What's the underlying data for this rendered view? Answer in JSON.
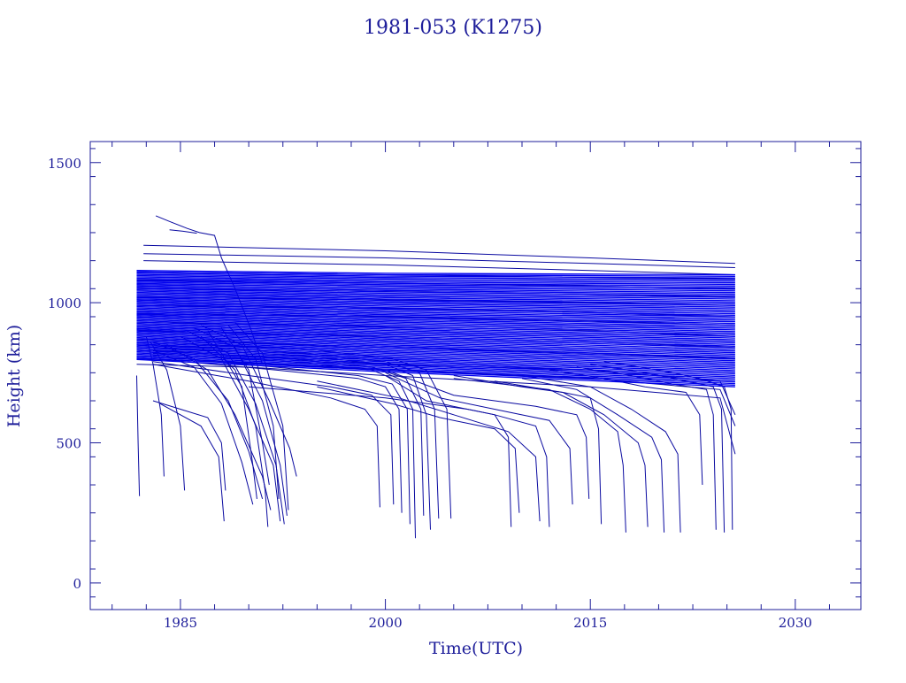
{
  "chart_data": {
    "type": "line",
    "title": "1981-053 (K1275)",
    "xlabel": "Time(UTC)",
    "ylabel": "Height (km)",
    "xlim": [
      1978.4,
      2034.8
    ],
    "ylim": [
      -95,
      1575
    ],
    "xticks": [
      1985,
      2000,
      2015,
      2030
    ],
    "xtick_labels": [
      "1985",
      "2000",
      "2015",
      "2030"
    ],
    "yticks": [
      0,
      500,
      1000,
      1500
    ],
    "ytick_labels": [
      "0",
      "500",
      "1000",
      "1500"
    ],
    "grid": false,
    "legend": "none",
    "colors": {
      "axes": "#1d1d9a",
      "text": "#1d1d9a",
      "series": "#0a0aa0",
      "dense_band": "#0000ee"
    },
    "series": [
      {
        "x": [
          1983.2,
          1984.2,
          1985.5,
          1986.4,
          1987.5,
          1988.0,
          1989.0,
          1990.2,
          1991.0
        ],
        "y": [
          1310,
          1290,
          1265,
          1250,
          1240,
          1160,
          1050,
          900,
          780
        ]
      },
      {
        "x": [
          1984.2,
          1985.2,
          1986.2
        ],
        "y": [
          1260,
          1255,
          1248
        ]
      },
      {
        "x": [
          1982.3,
          2000,
          2015,
          2025.6
        ],
        "y": [
          1205,
          1185,
          1160,
          1140
        ]
      },
      {
        "x": [
          1982.3,
          2000,
          2015,
          2025.6
        ],
        "y": [
          1175,
          1160,
          1140,
          1125
        ]
      },
      {
        "x": [
          1982.3,
          2000,
          2015,
          2025.6
        ],
        "y": [
          1150,
          1135,
          1115,
          1100
        ]
      },
      {
        "x": [
          1981.8,
          2000,
          2015,
          2025.6
        ],
        "y": [
          1110,
          1100,
          1090,
          1085
        ]
      },
      {
        "x": [
          1981.8,
          2000,
          2015,
          2025.6
        ],
        "y": [
          1080,
          1070,
          1060,
          1050
        ]
      },
      {
        "x": [
          1981.8,
          2000,
          2015,
          2025.6
        ],
        "y": [
          1050,
          1040,
          1030,
          1020
        ]
      },
      {
        "x": [
          1981.8,
          2000,
          2015,
          2025.6
        ],
        "y": [
          1020,
          1010,
          1000,
          990
        ]
      },
      {
        "x": [
          1981.8,
          2000,
          2015,
          2025.6
        ],
        "y": [
          990,
          980,
          965,
          950
        ]
      },
      {
        "x": [
          1981.8,
          2000,
          2015,
          2025.6
        ],
        "y": [
          960,
          950,
          935,
          920
        ]
      },
      {
        "x": [
          1981.8,
          2000,
          2015,
          2025.6
        ],
        "y": [
          930,
          915,
          900,
          880
        ]
      },
      {
        "x": [
          1981.8,
          2000,
          2015,
          2025.6
        ],
        "y": [
          900,
          880,
          860,
          840
        ]
      },
      {
        "x": [
          1981.8,
          2000,
          2015,
          2025.6
        ],
        "y": [
          870,
          840,
          820,
          800
        ]
      },
      {
        "x": [
          1981.8,
          1990,
          2000,
          2015,
          2024.5,
          2025.6
        ],
        "y": [
          830,
          810,
          780,
          760,
          720,
          600
        ]
      },
      {
        "x": [
          1981.8,
          1990,
          2000,
          2015,
          2024.5,
          2025.6
        ],
        "y": [
          800,
          785,
          760,
          730,
          690,
          560
        ]
      },
      {
        "x": [
          1981.8,
          1990,
          2000,
          2015,
          2024.5,
          2025.6
        ],
        "y": [
          780,
          770,
          740,
          700,
          660,
          460
        ]
      },
      {
        "x": [
          1981.8,
          1981.9,
          1982.0
        ],
        "y": [
          740,
          500,
          310
        ]
      },
      {
        "x": [
          1982.5,
          1983.0,
          1983.6,
          1983.8
        ],
        "y": [
          880,
          780,
          600,
          380
        ]
      },
      {
        "x": [
          1982.8,
          1984.0,
          1985.0,
          1985.3
        ],
        "y": [
          860,
          760,
          560,
          330
        ]
      },
      {
        "x": [
          1983.0,
          1985.0,
          1987.0,
          1988.0,
          1988.3
        ],
        "y": [
          650,
          620,
          590,
          500,
          330
        ]
      },
      {
        "x": [
          1983.5,
          1986.5,
          1987.8,
          1988.2
        ],
        "y": [
          640,
          560,
          450,
          220
        ]
      },
      {
        "x": [
          1983.0,
          1986.0,
          1988.0,
          1989.5,
          1990.3
        ],
        "y": [
          830,
          770,
          640,
          430,
          280
        ]
      },
      {
        "x": [
          1983.0,
          1986.0,
          1988.5,
          1990.0,
          1991.0
        ],
        "y": [
          860,
          800,
          650,
          470,
          300
        ]
      },
      {
        "x": [
          1984.0,
          1987.0,
          1989.0,
          1991.0,
          1991.6
        ],
        "y": [
          850,
          760,
          600,
          380,
          260
        ]
      },
      {
        "x": [
          1985.0,
          1988.0,
          1990.0,
          1991.8,
          1992.3
        ],
        "y": [
          880,
          800,
          620,
          420,
          220
        ]
      },
      {
        "x": [
          1985.5,
          1988.5,
          1990.5,
          1992.0,
          1992.6
        ],
        "y": [
          900,
          820,
          640,
          420,
          210
        ]
      },
      {
        "x": [
          1986.0,
          1989.0,
          1991.0,
          1992.3,
          1992.8
        ],
        "y": [
          910,
          840,
          650,
          420,
          240
        ]
      },
      {
        "x": [
          1986.5,
          1989.5,
          1991.5,
          1993.0,
          1993.5
        ],
        "y": [
          920,
          850,
          650,
          480,
          380
        ]
      },
      {
        "x": [
          1986.5,
          1989.0,
          1990.5,
          1991.2,
          1991.4
        ],
        "y": [
          880,
          760,
          560,
          330,
          200
        ]
      },
      {
        "x": [
          1987.0,
          1989.5,
          1990.3,
          1990.6
        ],
        "y": [
          900,
          700,
          420,
          300
        ]
      },
      {
        "x": [
          1988.0,
          1990.0,
          1991.0,
          1991.5
        ],
        "y": [
          910,
          760,
          500,
          350
        ]
      },
      {
        "x": [
          1988.5,
          1990.5,
          1991.8,
          1992.2
        ],
        "y": [
          920,
          800,
          560,
          300
        ]
      },
      {
        "x": [
          1989.0,
          1991.0,
          1992.5,
          1992.9
        ],
        "y": [
          930,
          820,
          560,
          260
        ]
      },
      {
        "x": [
          1983.0,
          1990.0,
          1996.0,
          1998.5,
          1999.4,
          1999.6
        ],
        "y": [
          780,
          720,
          660,
          620,
          560,
          270
        ]
      },
      {
        "x": [
          1983.0,
          1990.0,
          1996.0,
          1999.0,
          2000.4,
          2000.6
        ],
        "y": [
          790,
          740,
          700,
          670,
          600,
          280
        ]
      },
      {
        "x": [
          1983.0,
          1992.0,
          1998.0,
          2000.0,
          2001.0,
          2001.2
        ],
        "y": [
          800,
          760,
          730,
          700,
          620,
          250
        ]
      },
      {
        "x": [
          1983.0,
          1992.0,
          1998.0,
          2000.5,
          2001.6,
          2001.8
        ],
        "y": [
          810,
          770,
          740,
          710,
          620,
          210
        ]
      },
      {
        "x": [
          1983.0,
          1993.0,
          1999.0,
          2001.0,
          2002.0,
          2002.2
        ],
        "y": [
          820,
          790,
          760,
          720,
          620,
          160
        ]
      },
      {
        "x": [
          1983.0,
          1993.0,
          1999.0,
          2001.5,
          2002.6,
          2002.8
        ],
        "y": [
          830,
          800,
          770,
          730,
          620,
          240
        ]
      },
      {
        "x": [
          1983.0,
          1994.0,
          2000.0,
          2002.0,
          2003.0,
          2003.3
        ],
        "y": [
          840,
          810,
          780,
          740,
          600,
          190
        ]
      },
      {
        "x": [
          1983.0,
          1994.0,
          2000.0,
          2002.5,
          2003.6,
          2003.9
        ],
        "y": [
          850,
          820,
          790,
          750,
          620,
          230
        ]
      },
      {
        "x": [
          1983.0,
          1995.0,
          2000.5,
          2003.0,
          2004.5,
          2004.8
        ],
        "y": [
          860,
          830,
          800,
          760,
          620,
          230
        ]
      },
      {
        "x": [
          1990.0,
          2000.0,
          2006.0,
          2008.0,
          2009.0,
          2009.2
        ],
        "y": [
          700,
          660,
          620,
          600,
          520,
          200
        ]
      },
      {
        "x": [
          1995.0,
          2000.5,
          2004.0,
          2008.0,
          2009.5,
          2009.8
        ],
        "y": [
          700,
          640,
          590,
          550,
          480,
          250
        ]
      },
      {
        "x": [
          1995.0,
          2001.0,
          2005.0,
          2009.0,
          2011.0,
          2011.3
        ],
        "y": [
          720,
          660,
          600,
          540,
          450,
          220
        ]
      },
      {
        "x": [
          2000.0,
          2003.0,
          2008.0,
          2011.0,
          2011.8,
          2012.0
        ],
        "y": [
          740,
          650,
          600,
          560,
          450,
          200
        ]
      },
      {
        "x": [
          2000.0,
          2004.0,
          2009.0,
          2012.0,
          2013.5,
          2013.7
        ],
        "y": [
          750,
          660,
          610,
          580,
          480,
          280
        ]
      },
      {
        "x": [
          2000.0,
          2005.0,
          2011.0,
          2014.0,
          2014.7,
          2014.9
        ],
        "y": [
          760,
          670,
          630,
          600,
          520,
          300
        ]
      },
      {
        "x": [
          2005.0,
          2010.0,
          2013.0,
          2015.0,
          2015.6,
          2015.8
        ],
        "y": [
          740,
          700,
          680,
          660,
          550,
          210
        ]
      },
      {
        "x": [
          2005.0,
          2012.0,
          2015.0,
          2017.0,
          2017.4,
          2017.6
        ],
        "y": [
          730,
          690,
          620,
          540,
          420,
          180
        ]
      },
      {
        "x": [
          2008.0,
          2013.0,
          2016.0,
          2018.5,
          2019.0,
          2019.2
        ],
        "y": [
          720,
          680,
          600,
          500,
          420,
          200
        ]
      },
      {
        "x": [
          2010.0,
          2014.0,
          2017.0,
          2019.5,
          2020.2,
          2020.4
        ],
        "y": [
          730,
          690,
          600,
          520,
          440,
          180
        ]
      },
      {
        "x": [
          2010.0,
          2015.0,
          2018.0,
          2020.5,
          2021.4,
          2021.6
        ],
        "y": [
          740,
          700,
          620,
          540,
          460,
          180
        ]
      },
      {
        "x": [
          2012.0,
          2016.0,
          2019.0,
          2022.0,
          2023.0,
          2023.2
        ],
        "y": [
          760,
          730,
          700,
          680,
          600,
          350
        ]
      },
      {
        "x": [
          2014.0,
          2018.0,
          2021.0,
          2023.5,
          2024.0,
          2024.2
        ],
        "y": [
          770,
          740,
          710,
          690,
          600,
          190
        ]
      },
      {
        "x": [
          2015.0,
          2019.0,
          2022.0,
          2024.0,
          2024.6,
          2024.8
        ],
        "y": [
          780,
          750,
          720,
          700,
          620,
          180
        ]
      },
      {
        "x": [
          2016.0,
          2020.0,
          2023.0,
          2024.8,
          2025.3,
          2025.4
        ],
        "y": [
          790,
          760,
          730,
          700,
          620,
          190
        ]
      }
    ]
  }
}
